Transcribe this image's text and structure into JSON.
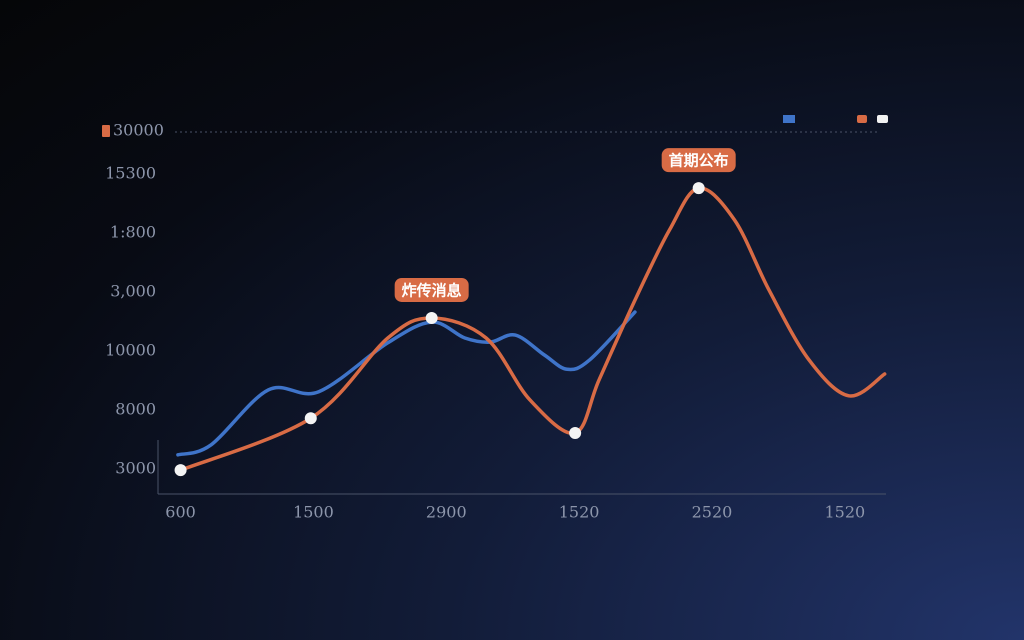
{
  "chart_data": {
    "type": "line",
    "legend_label": "30000",
    "xlim": [
      -0.17,
      5.31
    ],
    "xticks": [
      {
        "value": 0,
        "label": "600"
      },
      {
        "value": 1,
        "label": "1500"
      },
      {
        "value": 2,
        "label": "2900"
      },
      {
        "value": 3,
        "label": "1520"
      },
      {
        "value": 4,
        "label": "2520"
      },
      {
        "value": 5,
        "label": "1520"
      }
    ],
    "ylim": [
      -0.4,
      5.8
    ],
    "yticks": [
      {
        "value": 0,
        "label": "3000"
      },
      {
        "value": 1,
        "label": "8000"
      },
      {
        "value": 2,
        "label": "10000"
      },
      {
        "value": 3,
        "label": "3,000"
      },
      {
        "value": 4,
        "label": "1:800"
      },
      {
        "value": 5,
        "label": "15300"
      }
    ],
    "series": [
      {
        "color": "#3f74c9",
        "x": [
          -0.02,
          0.23,
          0.66,
          1.04,
          1.56,
          1.89,
          2.14,
          2.33,
          2.52,
          2.74,
          2.91,
          3.08,
          3.42
        ],
        "values": [
          0.24,
          0.41,
          1.34,
          1.31,
          2.14,
          2.49,
          2.22,
          2.15,
          2.27,
          1.93,
          1.69,
          1.85,
          2.66
        ]
      },
      {
        "name": "30000",
        "color": "#d86b45",
        "x": [
          0,
          0.98,
          1.56,
          1.89,
          2.3,
          2.63,
          2.97,
          3.15,
          3.42,
          3.68,
          3.9,
          4.17,
          4.43,
          4.73,
          5.03,
          5.3
        ],
        "values": [
          -0.02,
          0.86,
          2.22,
          2.56,
          2.22,
          1.17,
          0.61,
          1.51,
          2.86,
          4.05,
          4.76,
          4.22,
          3.03,
          1.85,
          1.24,
          1.61
        ]
      }
    ],
    "markers": [
      0,
      1,
      3,
      6,
      10
    ],
    "annotations": [
      {
        "text": "炸传消息",
        "point": 3
      },
      {
        "text": "首期公布",
        "point": 10
      }
    ]
  }
}
